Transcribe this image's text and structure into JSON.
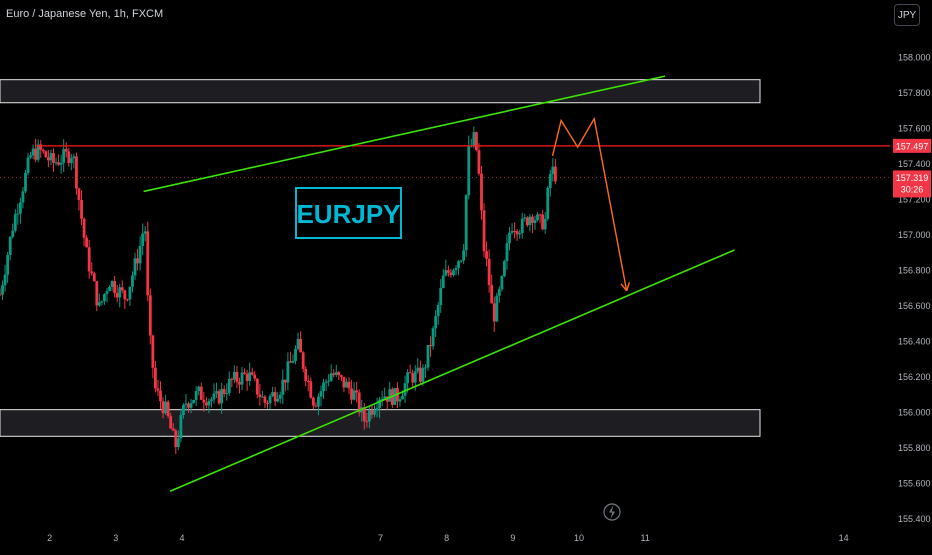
{
  "header": {
    "symbol_title": "Euro / Japanese Yen, 1h, FXCM"
  },
  "currency_button": "JPY",
  "chart_data": {
    "type": "candlestick",
    "title": "EURJPY",
    "y_ticks": [
      "158.000",
      "157.800",
      "157.600",
      "157.400",
      "157.200",
      "157.000",
      "156.800",
      "156.600",
      "156.400",
      "156.200",
      "156.000",
      "155.800",
      "155.600",
      "155.400"
    ],
    "x_ticks": [
      "2",
      "3",
      "4",
      "7",
      "8",
      "9",
      "10",
      "11",
      "14"
    ],
    "ylim": [
      155.36,
      158.15
    ],
    "x_domain": [
      1.25,
      14.7
    ],
    "price_labels": {
      "resistance": {
        "value": 157.497,
        "text": "157.497",
        "color": "#f23645"
      },
      "last": {
        "value": 157.319,
        "text": "157.319",
        "countdown": "30:26",
        "color": "#f23645"
      }
    },
    "zones": [
      {
        "name": "upper-zone",
        "from": 157.74,
        "to": 157.87
      },
      {
        "name": "lower-zone",
        "from": 155.86,
        "to": 156.01
      }
    ],
    "horizontal_lines": [
      {
        "name": "resistance-line",
        "x_start": 1.8,
        "price": 157.497,
        "color": "#ff1a1a"
      }
    ],
    "trendlines": [
      {
        "name": "upper-channel",
        "x1": 3.42,
        "y1": 157.24,
        "x2": 11.3,
        "y2": 157.89,
        "color": "#39e600"
      },
      {
        "name": "lower-channel",
        "x1": 3.82,
        "y1": 155.55,
        "x2": 12.35,
        "y2": 156.91,
        "color": "#39e600"
      }
    ],
    "projection": {
      "color": "#ff6a1a",
      "points": [
        [
          9.6,
          157.44
        ],
        [
          9.73,
          157.64
        ],
        [
          9.98,
          157.49
        ],
        [
          10.23,
          157.65
        ],
        [
          10.72,
          156.68
        ]
      ]
    },
    "badge": {
      "text": "EURJPY",
      "color": "#00b8d4"
    },
    "anchors": [
      [
        1.25,
        156.66
      ],
      [
        1.45,
        157.06
      ],
      [
        1.72,
        157.45
      ],
      [
        1.85,
        157.47
      ],
      [
        2.05,
        157.4
      ],
      [
        2.35,
        157.46
      ],
      [
        2.45,
        157.18
      ],
      [
        2.55,
        156.9
      ],
      [
        2.75,
        156.58
      ],
      [
        2.9,
        156.74
      ],
      [
        3.15,
        156.64
      ],
      [
        3.35,
        156.9
      ],
      [
        3.44,
        157.07
      ],
      [
        3.5,
        156.45
      ],
      [
        3.6,
        156.12
      ],
      [
        3.76,
        156.0
      ],
      [
        3.9,
        155.8
      ],
      [
        4.05,
        156.05
      ],
      [
        4.25,
        156.1
      ],
      [
        4.5,
        156.06
      ],
      [
        4.75,
        156.17
      ],
      [
        5.0,
        156.21
      ],
      [
        5.25,
        156.05
      ],
      [
        5.5,
        156.14
      ],
      [
        5.75,
        156.37
      ],
      [
        6.0,
        156.05
      ],
      [
        6.25,
        156.22
      ],
      [
        6.5,
        156.14
      ],
      [
        6.6,
        156.1
      ],
      [
        6.75,
        155.95
      ],
      [
        7.0,
        156.1
      ],
      [
        7.25,
        156.08
      ],
      [
        7.45,
        156.2
      ],
      [
        7.63,
        156.2
      ],
      [
        7.8,
        156.45
      ],
      [
        7.95,
        156.75
      ],
      [
        8.1,
        156.82
      ],
      [
        8.25,
        156.9
      ],
      [
        8.33,
        157.46
      ],
      [
        8.43,
        157.55
      ],
      [
        8.5,
        157.28
      ],
      [
        8.55,
        156.95
      ],
      [
        8.62,
        156.8
      ],
      [
        8.7,
        156.52
      ],
      [
        8.83,
        156.71
      ],
      [
        8.97,
        157.06
      ],
      [
        9.13,
        157.04
      ],
      [
        9.28,
        157.12
      ],
      [
        9.4,
        157.06
      ],
      [
        9.5,
        157.08
      ],
      [
        9.55,
        157.33
      ],
      [
        9.62,
        157.36
      ],
      [
        9.66,
        157.32
      ]
    ],
    "wave_seed": 7
  }
}
